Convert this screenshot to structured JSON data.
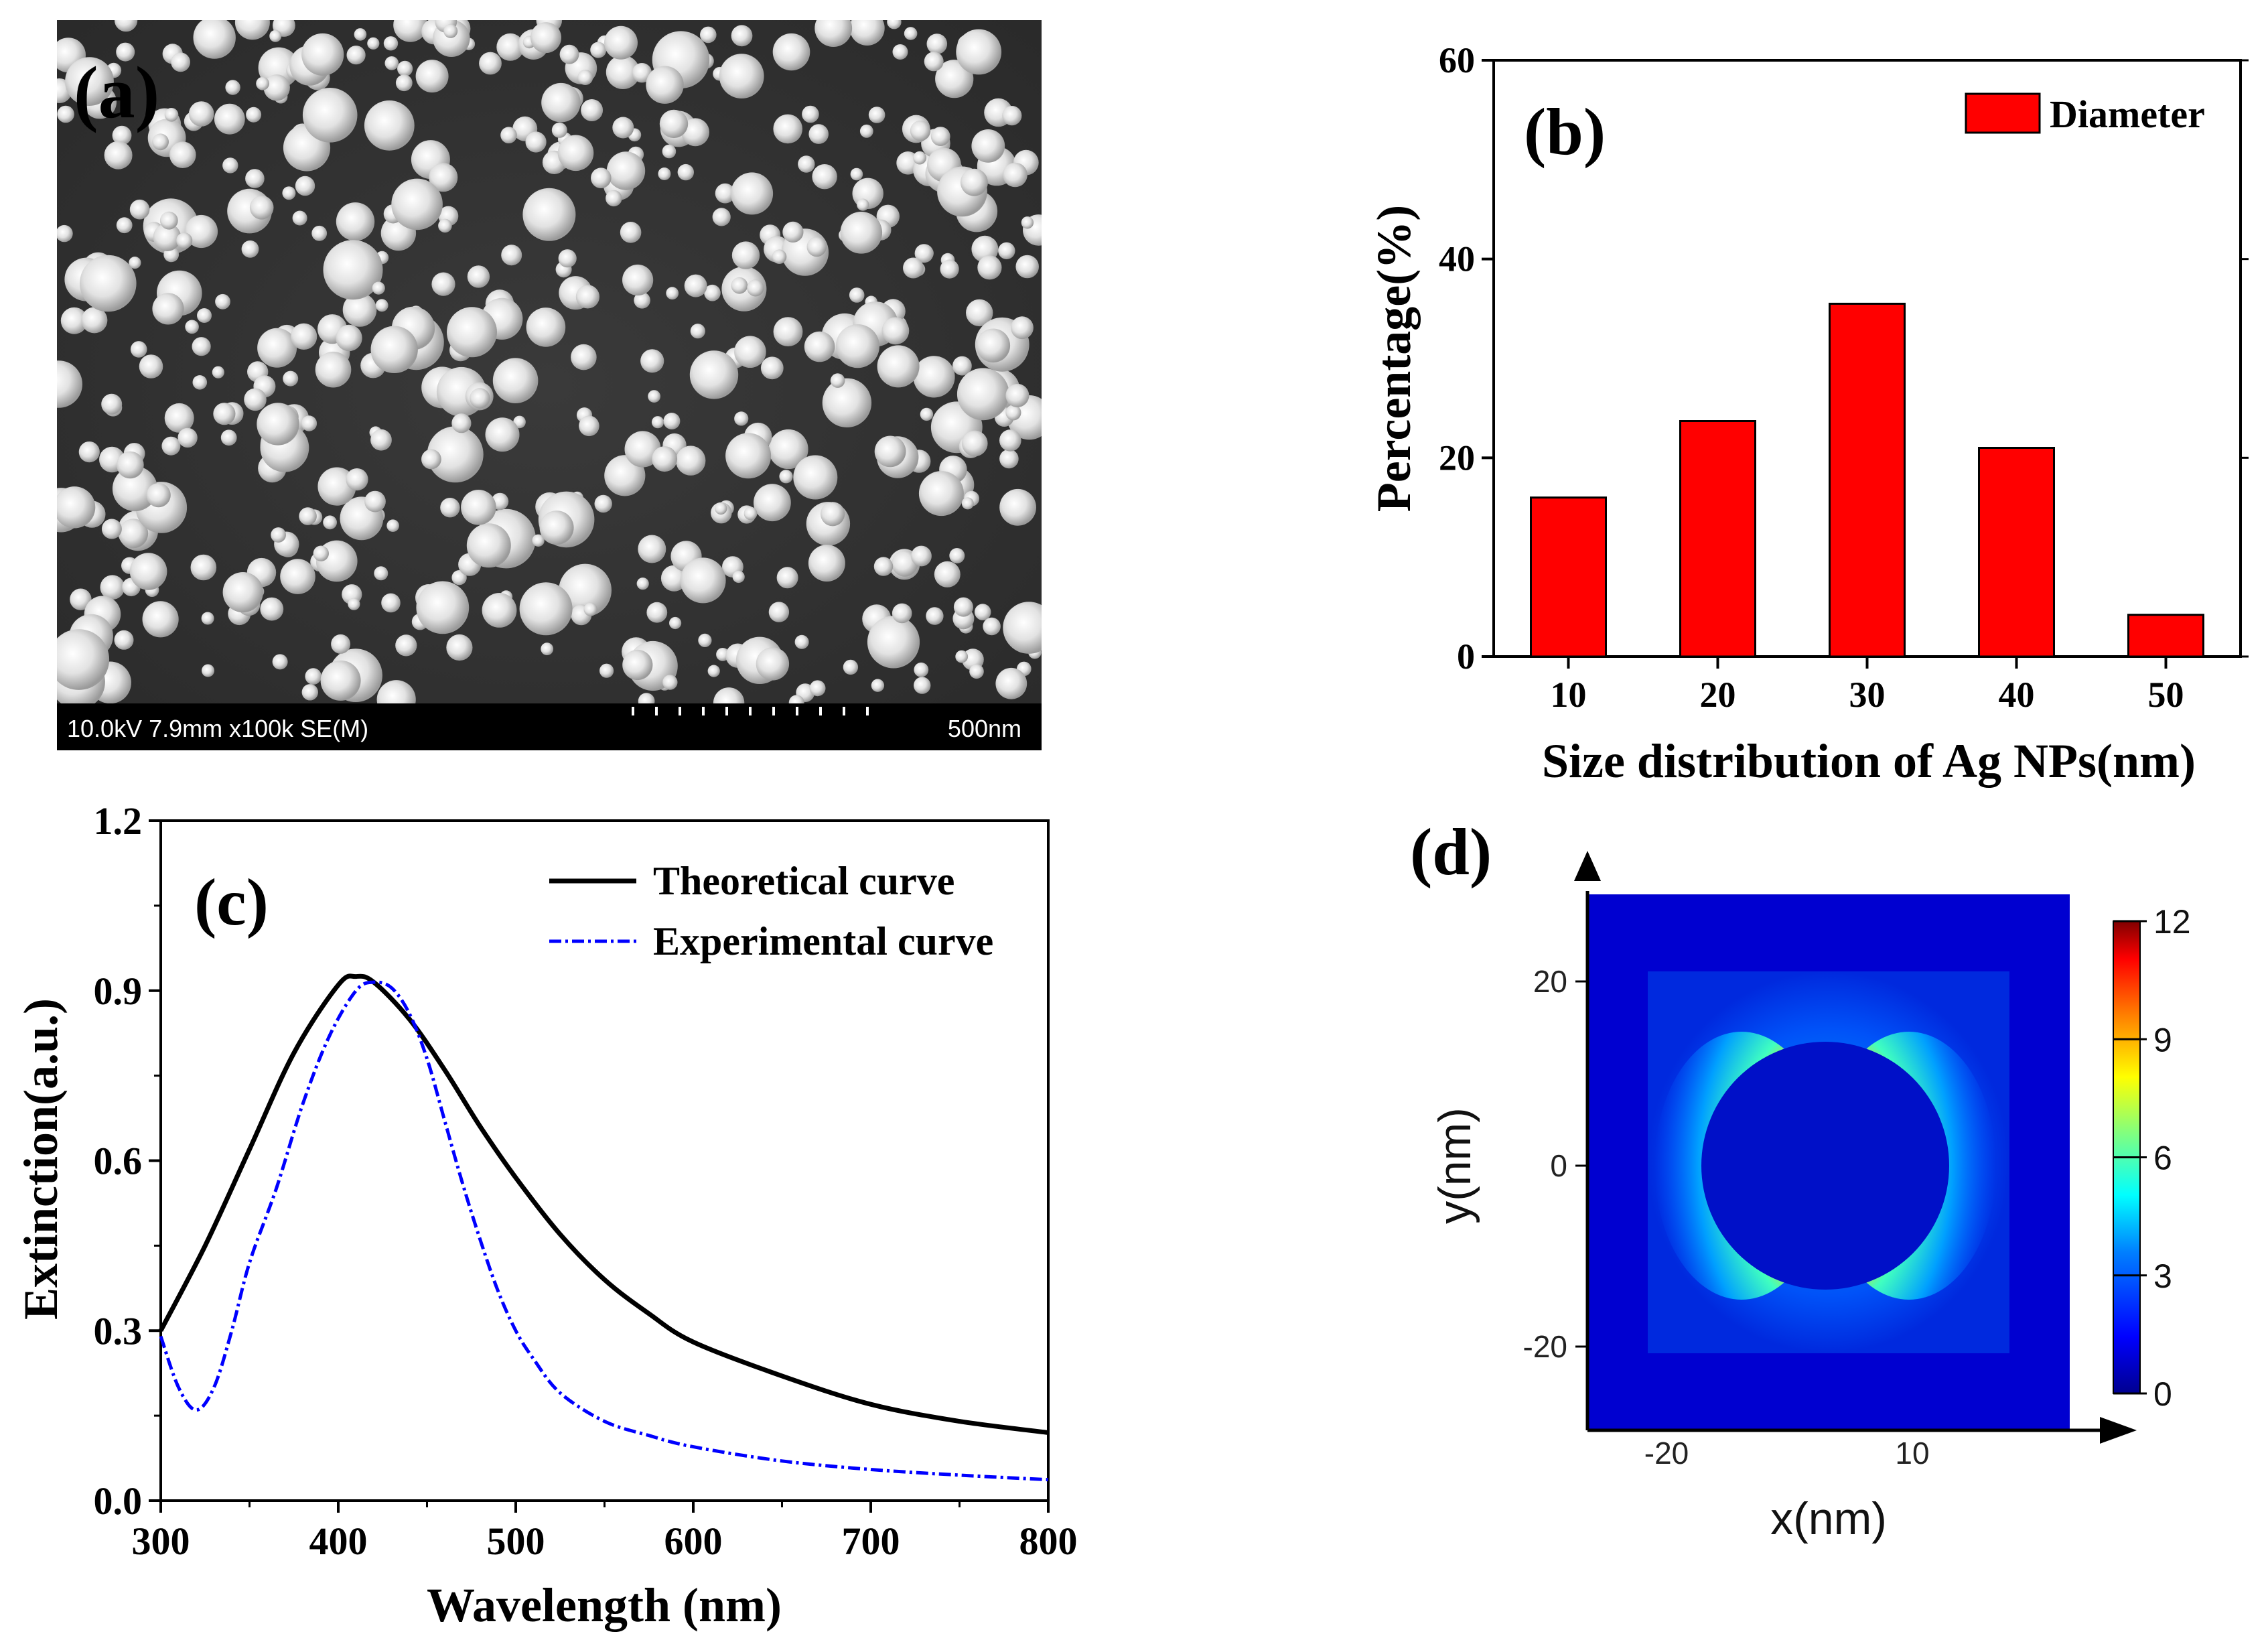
{
  "panel_a": {
    "label": "(a)",
    "sem_info": "10.0kV 7.9mm x100k SE(M)",
    "scale_bar": "500nm"
  },
  "chart_data": [
    {
      "panel": "(b)",
      "type": "bar",
      "title": "",
      "categories": [
        "10",
        "20",
        "30",
        "40",
        "50"
      ],
      "series": [
        {
          "name": "Diameter",
          "color": "#ff0000",
          "values": [
            16,
            23.7,
            35.5,
            21,
            4.2
          ]
        }
      ],
      "xlabel": "Size distribution of Ag NPs(nm)",
      "ylabel": "Percentage(%)",
      "ylim": [
        0,
        60
      ],
      "yticks": [
        "0",
        "20",
        "40",
        "60"
      ],
      "legend": "top-right"
    },
    {
      "panel": "(c)",
      "type": "line",
      "xlabel": "Wavelength (nm)",
      "ylabel": "Extinction(a.u.)",
      "xlim": [
        300,
        800
      ],
      "ylim": [
        0,
        1.2
      ],
      "xticks": [
        "300",
        "400",
        "500",
        "600",
        "700",
        "800"
      ],
      "yticks": [
        "0.0",
        "0.3",
        "0.6",
        "0.9",
        "1.2"
      ],
      "legend": "top-right",
      "series": [
        {
          "name": "Theoretical curve",
          "color": "#000000",
          "style": "solid",
          "x": [
            300,
            325,
            350,
            375,
            400,
            410,
            420,
            440,
            460,
            480,
            500,
            525,
            550,
            575,
            600,
            650,
            700,
            750,
            800
          ],
          "y": [
            0.3,
            0.45,
            0.62,
            0.79,
            0.91,
            0.925,
            0.915,
            0.85,
            0.76,
            0.66,
            0.57,
            0.47,
            0.39,
            0.33,
            0.28,
            0.22,
            0.17,
            0.14,
            0.12
          ]
        },
        {
          "name": "Experimental curve",
          "color": "#0000ff",
          "style": "dashdot",
          "x": [
            300,
            310,
            320,
            330,
            340,
            350,
            365,
            380,
            395,
            410,
            420,
            430,
            440,
            450,
            460,
            470,
            480,
            490,
            500,
            510,
            525,
            550,
            575,
            600,
            650,
            700,
            750,
            800
          ],
          "y": [
            0.29,
            0.2,
            0.16,
            0.2,
            0.3,
            0.42,
            0.55,
            0.7,
            0.82,
            0.9,
            0.915,
            0.905,
            0.86,
            0.78,
            0.67,
            0.56,
            0.46,
            0.37,
            0.3,
            0.25,
            0.19,
            0.14,
            0.115,
            0.095,
            0.07,
            0.055,
            0.045,
            0.037
          ]
        }
      ]
    },
    {
      "panel": "(d)",
      "type": "heatmap",
      "xlabel": "x(nm)",
      "ylabel": "y(nm)",
      "xticks": [
        "-20",
        "10"
      ],
      "yticks": [
        "20",
        "0",
        "-20"
      ],
      "colorbar": {
        "ticks": [
          "12",
          "9",
          "6",
          "3",
          "0"
        ],
        "range": [
          0,
          12
        ]
      }
    }
  ]
}
